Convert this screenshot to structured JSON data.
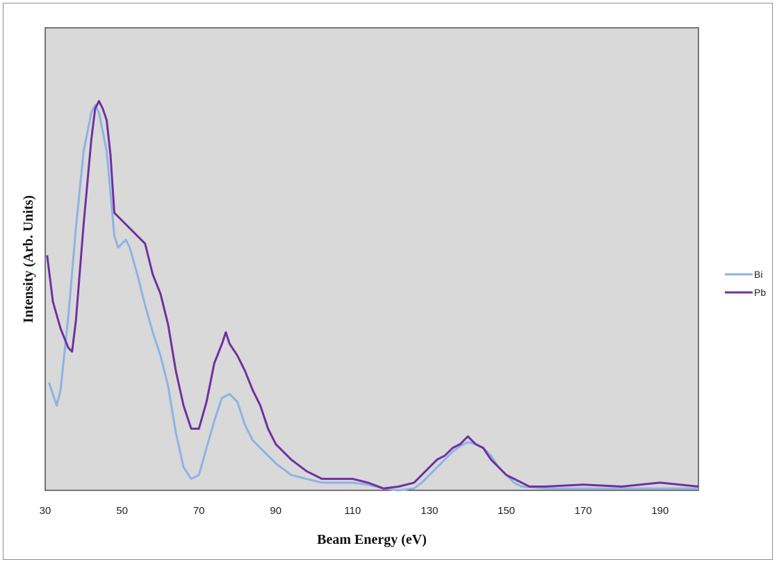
{
  "chart_data": {
    "type": "line",
    "title": "",
    "xlabel": "Beam Energy (eV)",
    "ylabel": "Intensity (Arb. Units)",
    "xlim": [
      30,
      200
    ],
    "ylim": [
      0,
      1
    ],
    "x_ticks": [
      30,
      50,
      70,
      90,
      110,
      130,
      150,
      170,
      190
    ],
    "y_ticks_shown": false,
    "grid": false,
    "legend_position": "right",
    "plot_background": "#d9d9d9",
    "series": [
      {
        "name": "Bi",
        "color": "#8db3e2",
        "x": [
          31,
          33,
          34,
          36,
          38,
          40,
          42,
          43,
          44,
          46,
          48,
          49,
          51,
          52,
          54,
          56,
          58,
          60,
          62,
          64,
          66,
          68,
          70,
          72,
          74,
          76,
          78,
          80,
          82,
          84,
          86,
          88,
          90,
          94,
          98,
          102,
          106,
          110,
          114,
          118,
          122,
          126,
          128,
          130,
          132,
          134,
          136,
          138,
          140,
          142,
          144,
          146,
          148,
          150,
          152,
          154,
          160,
          170,
          180,
          190,
          200
        ],
        "y": [
          0.28,
          0.22,
          0.26,
          0.45,
          0.68,
          0.88,
          0.98,
          1.0,
          0.98,
          0.88,
          0.66,
          0.63,
          0.65,
          0.63,
          0.56,
          0.48,
          0.41,
          0.35,
          0.27,
          0.15,
          0.06,
          0.03,
          0.04,
          0.11,
          0.18,
          0.24,
          0.25,
          0.23,
          0.17,
          0.13,
          0.11,
          0.09,
          0.07,
          0.04,
          0.03,
          0.02,
          0.02,
          0.02,
          0.015,
          0.005,
          0.0,
          0.005,
          0.02,
          0.04,
          0.06,
          0.08,
          0.1,
          0.115,
          0.125,
          0.12,
          0.11,
          0.09,
          0.06,
          0.04,
          0.02,
          0.01,
          0.005,
          0.005,
          0.005,
          0.005,
          0.005
        ]
      },
      {
        "name": "Pb",
        "color": "#7030a0",
        "x": [
          30.5,
          32,
          34,
          36,
          37,
          38,
          40,
          42,
          43,
          44,
          45,
          46,
          47,
          48,
          50,
          52,
          54,
          56,
          58,
          60,
          62,
          64,
          66,
          68,
          70,
          72,
          74,
          76,
          77,
          78,
          80,
          82,
          84,
          86,
          88,
          90,
          94,
          98,
          102,
          106,
          110,
          114,
          118,
          122,
          126,
          128,
          130,
          132,
          134,
          136,
          138,
          140,
          142,
          144,
          146,
          148,
          150,
          152,
          154,
          156,
          160,
          170,
          180,
          190,
          200
        ],
        "y": [
          0.61,
          0.49,
          0.42,
          0.37,
          0.36,
          0.44,
          0.69,
          0.91,
          0.99,
          1.01,
          0.99,
          0.96,
          0.87,
          0.72,
          0.7,
          0.68,
          0.66,
          0.64,
          0.56,
          0.51,
          0.43,
          0.31,
          0.22,
          0.16,
          0.16,
          0.23,
          0.33,
          0.38,
          0.41,
          0.38,
          0.35,
          0.31,
          0.26,
          0.22,
          0.16,
          0.12,
          0.08,
          0.05,
          0.03,
          0.03,
          0.03,
          0.02,
          0.005,
          0.01,
          0.02,
          0.04,
          0.06,
          0.08,
          0.09,
          0.11,
          0.12,
          0.14,
          0.12,
          0.11,
          0.08,
          0.06,
          0.04,
          0.03,
          0.02,
          0.01,
          0.01,
          0.015,
          0.01,
          0.02,
          0.01
        ]
      }
    ]
  }
}
